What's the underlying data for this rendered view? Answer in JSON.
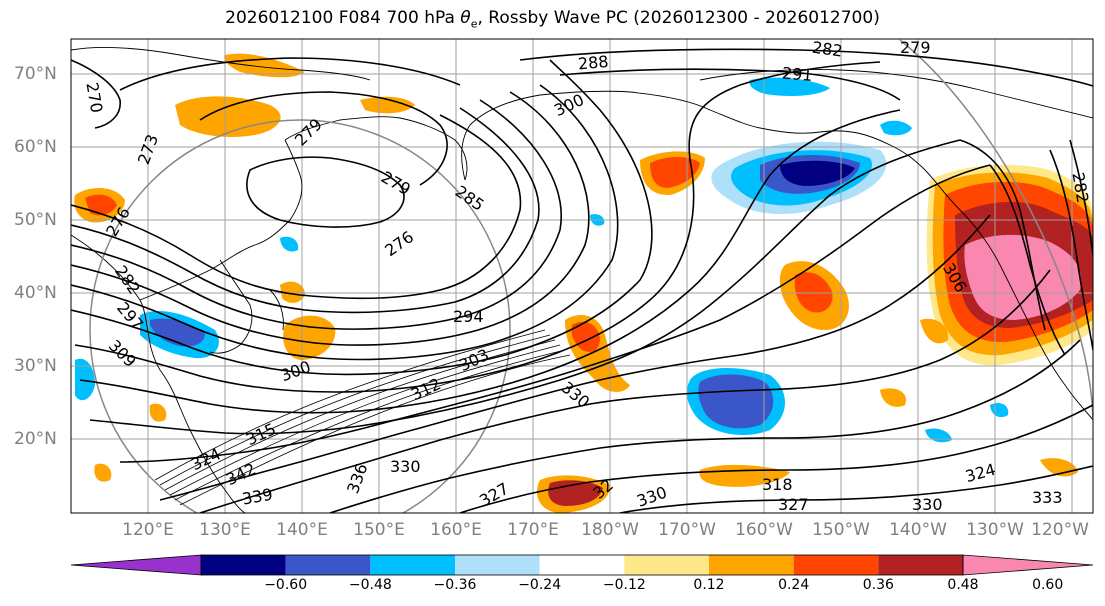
{
  "title_main": "2026012100 F084 700 hPa ",
  "title_var": "θ",
  "title_sub": "e",
  "title_rest": ", Rossby Wave PC (2026012300 - 2026012700)",
  "map": {
    "lat_labels": [
      {
        "label": "70°N",
        "lat": 70
      },
      {
        "label": "60°N",
        "lat": 60
      },
      {
        "label": "50°N",
        "lat": 50
      },
      {
        "label": "40°N",
        "lat": 40
      },
      {
        "label": "30°N",
        "lat": 30
      },
      {
        "label": "20°N",
        "lat": 20
      }
    ],
    "lon_labels": [
      "120°E",
      "130°E",
      "140°E",
      "150°E",
      "160°E",
      "170°E",
      "180°W",
      "170°W",
      "160°W",
      "150°W",
      "140°W",
      "130°W",
      "120°W"
    ],
    "lat_range": [
      10,
      75
    ],
    "contour_labels": [
      "282",
      "279",
      "288",
      "291",
      "300",
      "279",
      "273",
      "276",
      "285",
      "276",
      "279",
      "270",
      "282",
      "294",
      "303",
      "300",
      "309",
      "312",
      "330",
      "315",
      "324",
      "342",
      "330",
      "336",
      "339",
      "327",
      "32",
      "330",
      "318",
      "330",
      "324",
      "327",
      "333",
      "306",
      "282",
      "297"
    ],
    "shading_colors": {
      "neg_strong": "#000080",
      "neg_mid": "#3a56c8",
      "neg_light": "#00bfff",
      "neg_faint": "#aee0fa",
      "pos_faint": "#ffe88a",
      "pos_light": "#ffa500",
      "pos_mid": "#ff4500",
      "pos_strong": "#b22222",
      "pos_max": "#f987b0"
    }
  },
  "colorbar": {
    "colors": [
      "#9932cc",
      "#000080",
      "#3a56c8",
      "#00bfff",
      "#aee0fa",
      "#ffffff",
      "#ffe88a",
      "#ffa500",
      "#ff4500",
      "#b22222",
      "#f987b0"
    ],
    "ticks": [
      "−0.60",
      "−0.48",
      "−0.36",
      "−0.24",
      "−0.12",
      "0.12",
      "0.24",
      "0.36",
      "0.48",
      "0.60"
    ]
  }
}
